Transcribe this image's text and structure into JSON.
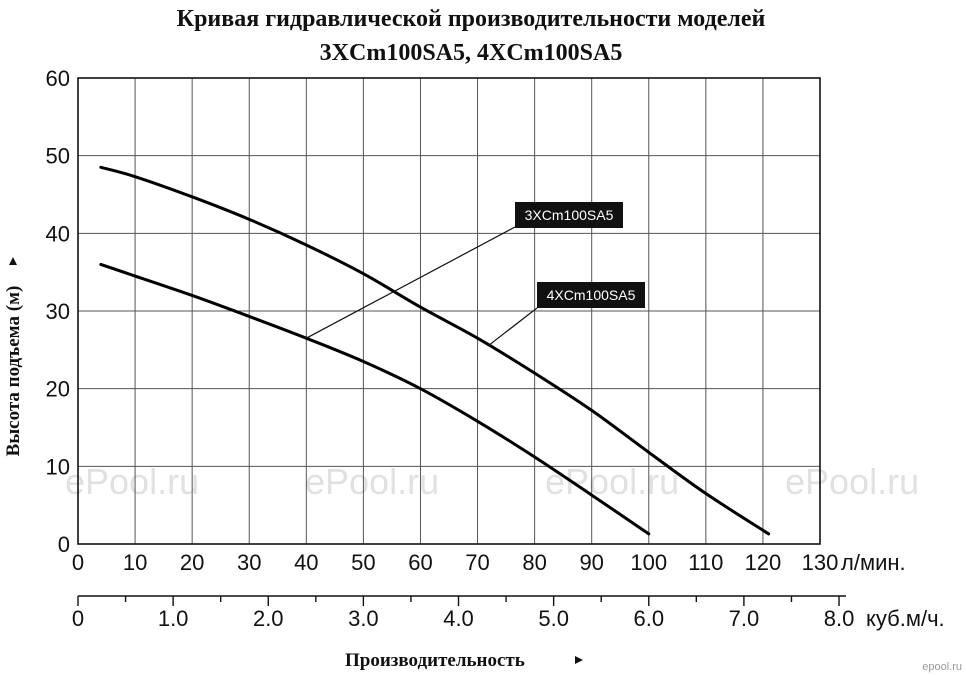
{
  "chart_data": {
    "type": "line",
    "title": "Кривая гидравлической производительности моделей",
    "subtitle": "3XCm100SA5, 4XCm100SA5",
    "xlabel": "Производительность",
    "ylabel": "Высота подъема (м)",
    "x_unit_primary": "л/мин.",
    "x_unit_secondary": "куб.м/ч.",
    "xlim": [
      0,
      130
    ],
    "ylim": [
      0,
      60
    ],
    "x_ticks": [
      "0",
      "10",
      "20",
      "30",
      "40",
      "50",
      "60",
      "70",
      "80",
      "90",
      "100",
      "110",
      "120",
      "130"
    ],
    "y_ticks": [
      "0",
      "10",
      "20",
      "30",
      "40",
      "50",
      "60"
    ],
    "x2_ticks": [
      "0",
      "1.0",
      "2.0",
      "3.0",
      "4.0",
      "5.0",
      "6.0",
      "7.0",
      "8.0"
    ],
    "grid": true,
    "series": [
      {
        "name": "3XCm100SA5",
        "x": [
          4,
          10,
          20,
          30,
          40,
          50,
          60,
          70,
          80,
          90,
          100
        ],
        "y": [
          36,
          34.5,
          32,
          29.3,
          26.5,
          23.5,
          20,
          15.8,
          11.2,
          6.3,
          1.3
        ]
      },
      {
        "name": "4XCm100SA5",
        "x": [
          4,
          10,
          20,
          30,
          40,
          50,
          60,
          70,
          80,
          90,
          100,
          110,
          121
        ],
        "y": [
          48.5,
          47.3,
          44.7,
          41.8,
          38.5,
          34.8,
          30.5,
          26.5,
          22,
          17.2,
          11.8,
          6.5,
          1.3
        ]
      }
    ]
  },
  "watermark": "ePool.ru",
  "corner_mark": "epool.ru",
  "colors": {
    "line": "#000000",
    "grid": "#555555",
    "legend_bg": "#111111"
  }
}
